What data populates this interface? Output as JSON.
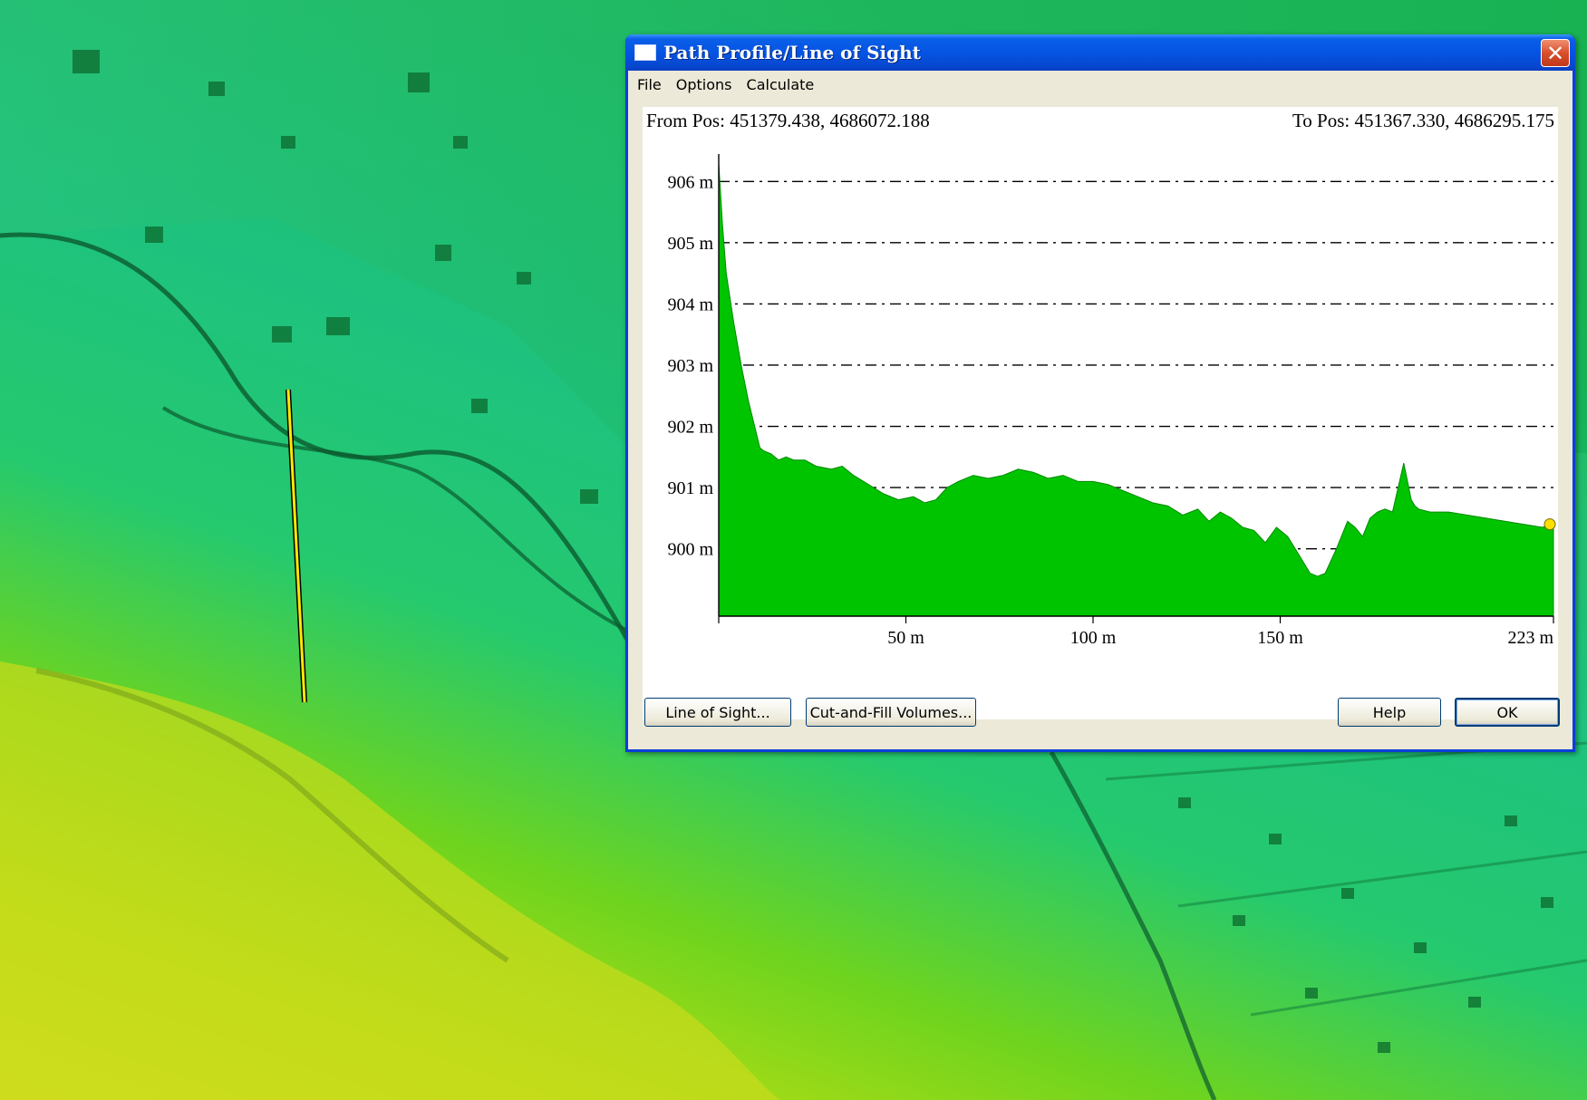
{
  "window": {
    "title": "Path Profile/Line of Sight",
    "close_glyph": "✕"
  },
  "menu": [
    "File",
    "Options",
    "Calculate"
  ],
  "profile": {
    "from_pos": "From Pos: 451379.438, 4686072.188",
    "to_pos": "To Pos: 451367.330, 4686295.175"
  },
  "buttons": {
    "line_of_sight": "Line of Sight...",
    "cut_fill": "Cut-and-Fill Volumes...",
    "help": "Help",
    "ok": "OK"
  },
  "chart_data": {
    "type": "area",
    "x_ticks": [
      0,
      50,
      100,
      150,
      223
    ],
    "x_tick_labels": [
      "",
      "50 m",
      "100 m",
      "150 m",
      "223 m"
    ],
    "y_ticks": [
      900,
      901,
      902,
      903,
      904,
      905,
      906
    ],
    "y_tick_labels": [
      "900 m",
      "901 m",
      "902 m",
      "903 m",
      "904 m",
      "905 m",
      "906 m"
    ],
    "xlim": [
      0,
      223
    ],
    "ylim": [
      898.9,
      906.3
    ],
    "grid": "horizontal dash-dot",
    "fill_color": "#00c400",
    "endpoint_color": "#ffe000",
    "x": [
      0,
      1,
      2,
      4,
      6,
      8,
      10,
      11,
      12,
      14,
      16,
      18,
      20,
      23,
      26,
      30,
      33,
      36,
      40,
      44,
      48,
      52,
      55,
      58,
      61,
      64,
      68,
      72,
      76,
      80,
      84,
      88,
      92,
      96,
      100,
      104,
      108,
      112,
      116,
      120,
      124,
      128,
      131,
      134,
      137,
      140,
      143,
      146,
      149,
      152,
      155,
      158,
      160,
      162,
      165,
      168,
      170,
      172,
      174,
      176,
      178,
      180,
      183,
      185,
      186,
      187,
      190,
      195,
      200,
      205,
      210,
      215,
      220,
      223
    ],
    "y": [
      906.3,
      905.3,
      904.5,
      903.7,
      903.0,
      902.4,
      901.9,
      901.65,
      901.6,
      901.55,
      901.45,
      901.5,
      901.45,
      901.45,
      901.35,
      901.3,
      901.35,
      901.2,
      901.05,
      900.9,
      900.8,
      900.85,
      900.75,
      900.8,
      901.0,
      901.1,
      901.2,
      901.15,
      901.2,
      901.3,
      901.25,
      901.15,
      901.2,
      901.1,
      901.1,
      901.05,
      900.95,
      900.85,
      900.75,
      900.7,
      900.55,
      900.65,
      900.45,
      900.6,
      900.5,
      900.35,
      900.3,
      900.1,
      900.35,
      900.2,
      899.9,
      899.6,
      899.55,
      899.6,
      900.0,
      900.45,
      900.35,
      900.2,
      900.5,
      900.6,
      900.65,
      900.6,
      901.4,
      900.8,
      900.7,
      900.65,
      900.6,
      900.6,
      900.55,
      900.5,
      900.45,
      900.4,
      900.35,
      900.4
    ]
  }
}
